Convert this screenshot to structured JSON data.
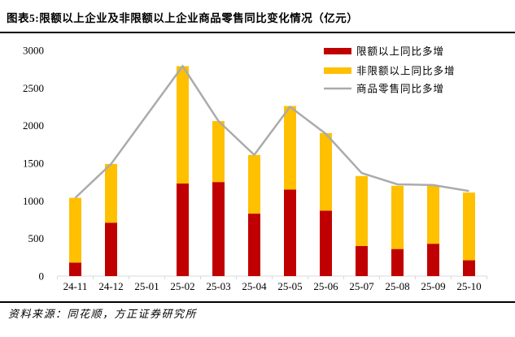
{
  "header": {
    "title": "图表5:限额以上企业及非限额以上企业商品零售同比变化情况（亿元）"
  },
  "footer": {
    "source": "资料来源：同花顺，方正证券研究所"
  },
  "chart_data": {
    "type": "bar",
    "subtype": "stacked-bars-with-line-overlay",
    "unit": "亿元",
    "categories": [
      "24-11",
      "24-12",
      "25-01",
      "25-02",
      "25-03",
      "25-04",
      "25-05",
      "25-06",
      "25-07",
      "25-08",
      "25-09",
      "25-10"
    ],
    "series": [
      {
        "name": "限额以上同比多增",
        "type": "bar",
        "color": "#C00000",
        "values": [
          180,
          710,
          null,
          1230,
          1250,
          830,
          1150,
          870,
          400,
          360,
          430,
          210
        ]
      },
      {
        "name": "非限额以上同比多增",
        "type": "bar",
        "color": "#FFC000",
        "values": [
          860,
          780,
          null,
          1560,
          810,
          780,
          1110,
          1030,
          930,
          840,
          770,
          900
        ]
      },
      {
        "name": "商品零售同比多增",
        "type": "line",
        "color": "#ABABAB",
        "values": [
          1040,
          1490,
          null,
          2790,
          2060,
          1610,
          2250,
          1890,
          1370,
          1220,
          1210,
          1130
        ]
      }
    ],
    "stacked_totals": [
      1040,
      1490,
      null,
      2790,
      2060,
      1610,
      2260,
      1900,
      1330,
      1200,
      1200,
      1110
    ],
    "ylim": [
      0,
      3000
    ],
    "yticks": [
      0,
      500,
      1000,
      1500,
      2000,
      2500,
      3000
    ],
    "xlabel": "",
    "ylabel": "",
    "grid": false,
    "legend_position": "top-right",
    "axis_color": "#D9D9D9",
    "label_color": "#000000"
  }
}
